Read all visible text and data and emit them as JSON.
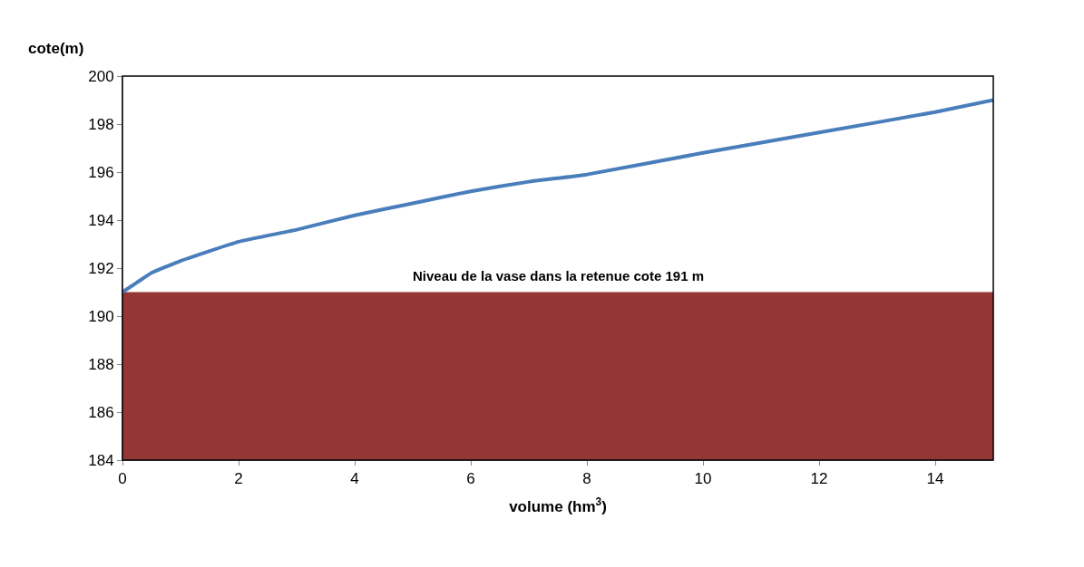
{
  "chart_data": {
    "type": "line",
    "xlabel": "volume (hm$^{3}$)",
    "ylabel": "cote(m)",
    "x": [
      0,
      0.25,
      0.5,
      1,
      2,
      3,
      4,
      5,
      6,
      7,
      8,
      10,
      12,
      14,
      15
    ],
    "series": [
      {
        "color": "#4a7ebb",
        "values": [
          191.0,
          191.4,
          191.8,
          192.3,
          193.1,
          193.6,
          194.2,
          194.7,
          195.2,
          195.6,
          195.9,
          196.8,
          197.65,
          198.5,
          199.0
        ]
      }
    ],
    "bands": [
      {
        "axis": "y",
        "from": 184,
        "to": 191,
        "label": "Niveau de la vase dans la retenue cote 191 m",
        "color": "#943634"
      }
    ],
    "xlim": [
      0,
      15
    ],
    "xticks": [
      0,
      2,
      4,
      6,
      8,
      10,
      12,
      14
    ],
    "ylim": [
      184,
      200
    ],
    "yticks": [
      184,
      186,
      188,
      190,
      192,
      194,
      196,
      198,
      200
    ],
    "grid": false,
    "marker": "none",
    "line_style": "solid"
  }
}
